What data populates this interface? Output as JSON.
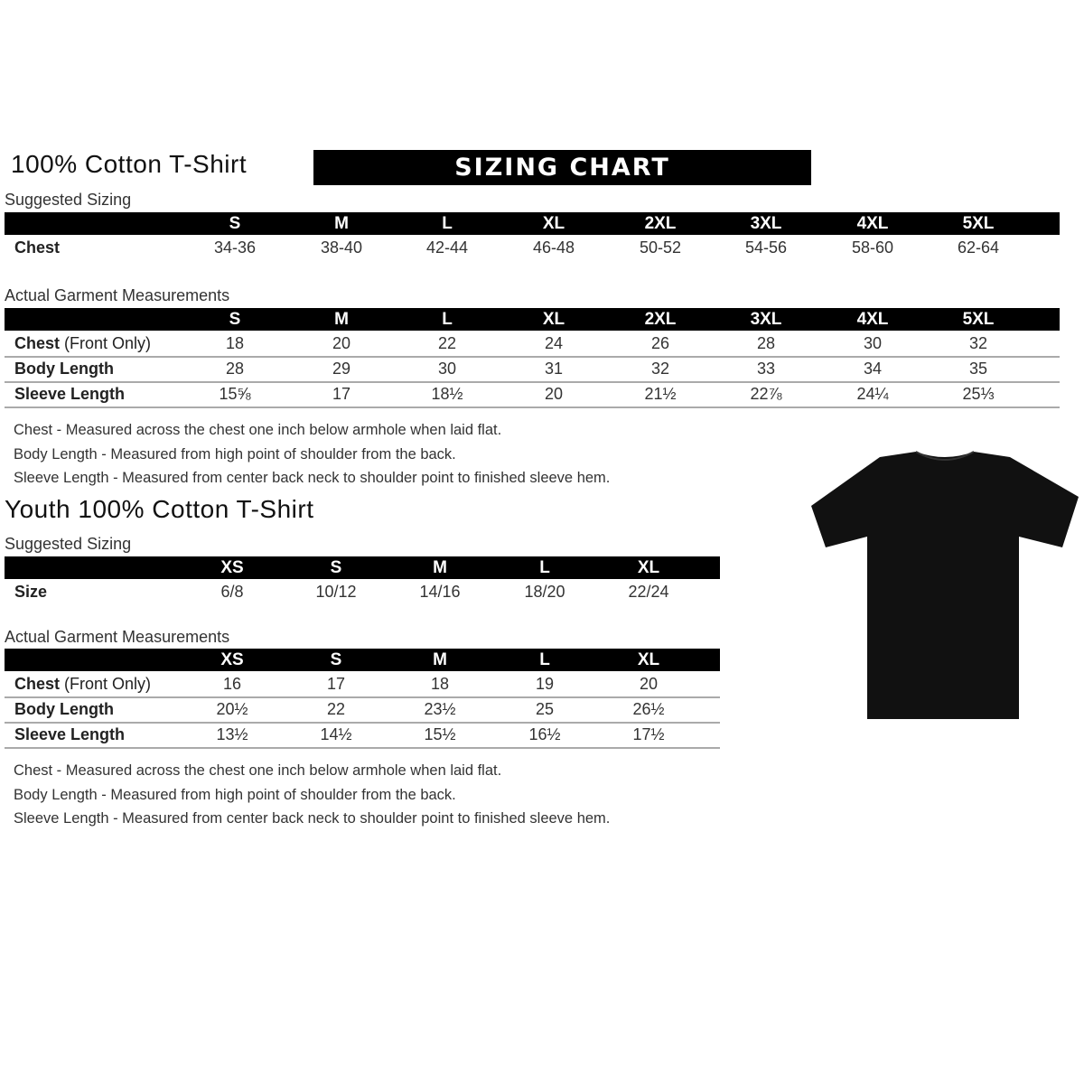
{
  "adult": {
    "title": "100% Cotton T-Shirt",
    "banner": "SIZING CHART",
    "suggested": {
      "label": "Suggested Sizing",
      "sizes": [
        "S",
        "M",
        "L",
        "XL",
        "2XL",
        "3XL",
        "4XL",
        "5XL"
      ],
      "row": {
        "label": "Chest",
        "values": [
          "34-36",
          "38-40",
          "42-44",
          "46-48",
          "50-52",
          "54-56",
          "58-60",
          "62-64"
        ]
      }
    },
    "actual": {
      "label": "Actual Garment Measurements",
      "sizes": [
        "S",
        "M",
        "L",
        "XL",
        "2XL",
        "3XL",
        "4XL",
        "5XL"
      ],
      "rows": [
        {
          "label": "Chest",
          "suffix": " (Front Only)",
          "values": [
            "18",
            "20",
            "22",
            "24",
            "26",
            "28",
            "30",
            "32"
          ]
        },
        {
          "label": "Body Length",
          "suffix": "",
          "values": [
            "28",
            "29",
            "30",
            "31",
            "32",
            "33",
            "34",
            "35"
          ]
        },
        {
          "label": "Sleeve Length",
          "suffix": "",
          "values": [
            "15⅝",
            "17",
            "18½",
            "20",
            "21½",
            "22⅞",
            "24¼",
            "25⅓"
          ]
        }
      ]
    },
    "notes": [
      "Chest - Measured across the chest one inch below armhole when laid flat.",
      "Body Length - Measured from high point of shoulder from the back.",
      "Sleeve Length - Measured from center back neck to shoulder point to finished sleeve hem."
    ]
  },
  "youth": {
    "title": "Youth 100% Cotton T-Shirt",
    "suggested": {
      "label": "Suggested Sizing",
      "sizes": [
        "XS",
        "S",
        "M",
        "L",
        "XL"
      ],
      "row": {
        "label": "Size",
        "values": [
          "6/8",
          "10/12",
          "14/16",
          "18/20",
          "22/24"
        ]
      }
    },
    "actual": {
      "label": "Actual Garment Measurements",
      "sizes": [
        "XS",
        "S",
        "M",
        "L",
        "XL"
      ],
      "rows": [
        {
          "label": "Chest",
          "suffix": " (Front Only)",
          "values": [
            "16",
            "17",
            "18",
            "19",
            "20"
          ]
        },
        {
          "label": "Body Length",
          "suffix": "",
          "values": [
            "20½",
            "22",
            "23½",
            "25",
            "26½"
          ]
        },
        {
          "label": "Sleeve Length",
          "suffix": "",
          "values": [
            "13½",
            "14½",
            "15½",
            "16½",
            "17½"
          ]
        }
      ]
    },
    "notes": [
      "Chest - Measured across the chest one inch below armhole when laid flat.",
      "Body Length - Measured from high point of shoulder from the back.",
      "Sleeve Length - Measured from center back neck to shoulder point to finished sleeve hem."
    ]
  },
  "image": {
    "icon": "black-tshirt",
    "color": "#111111"
  }
}
